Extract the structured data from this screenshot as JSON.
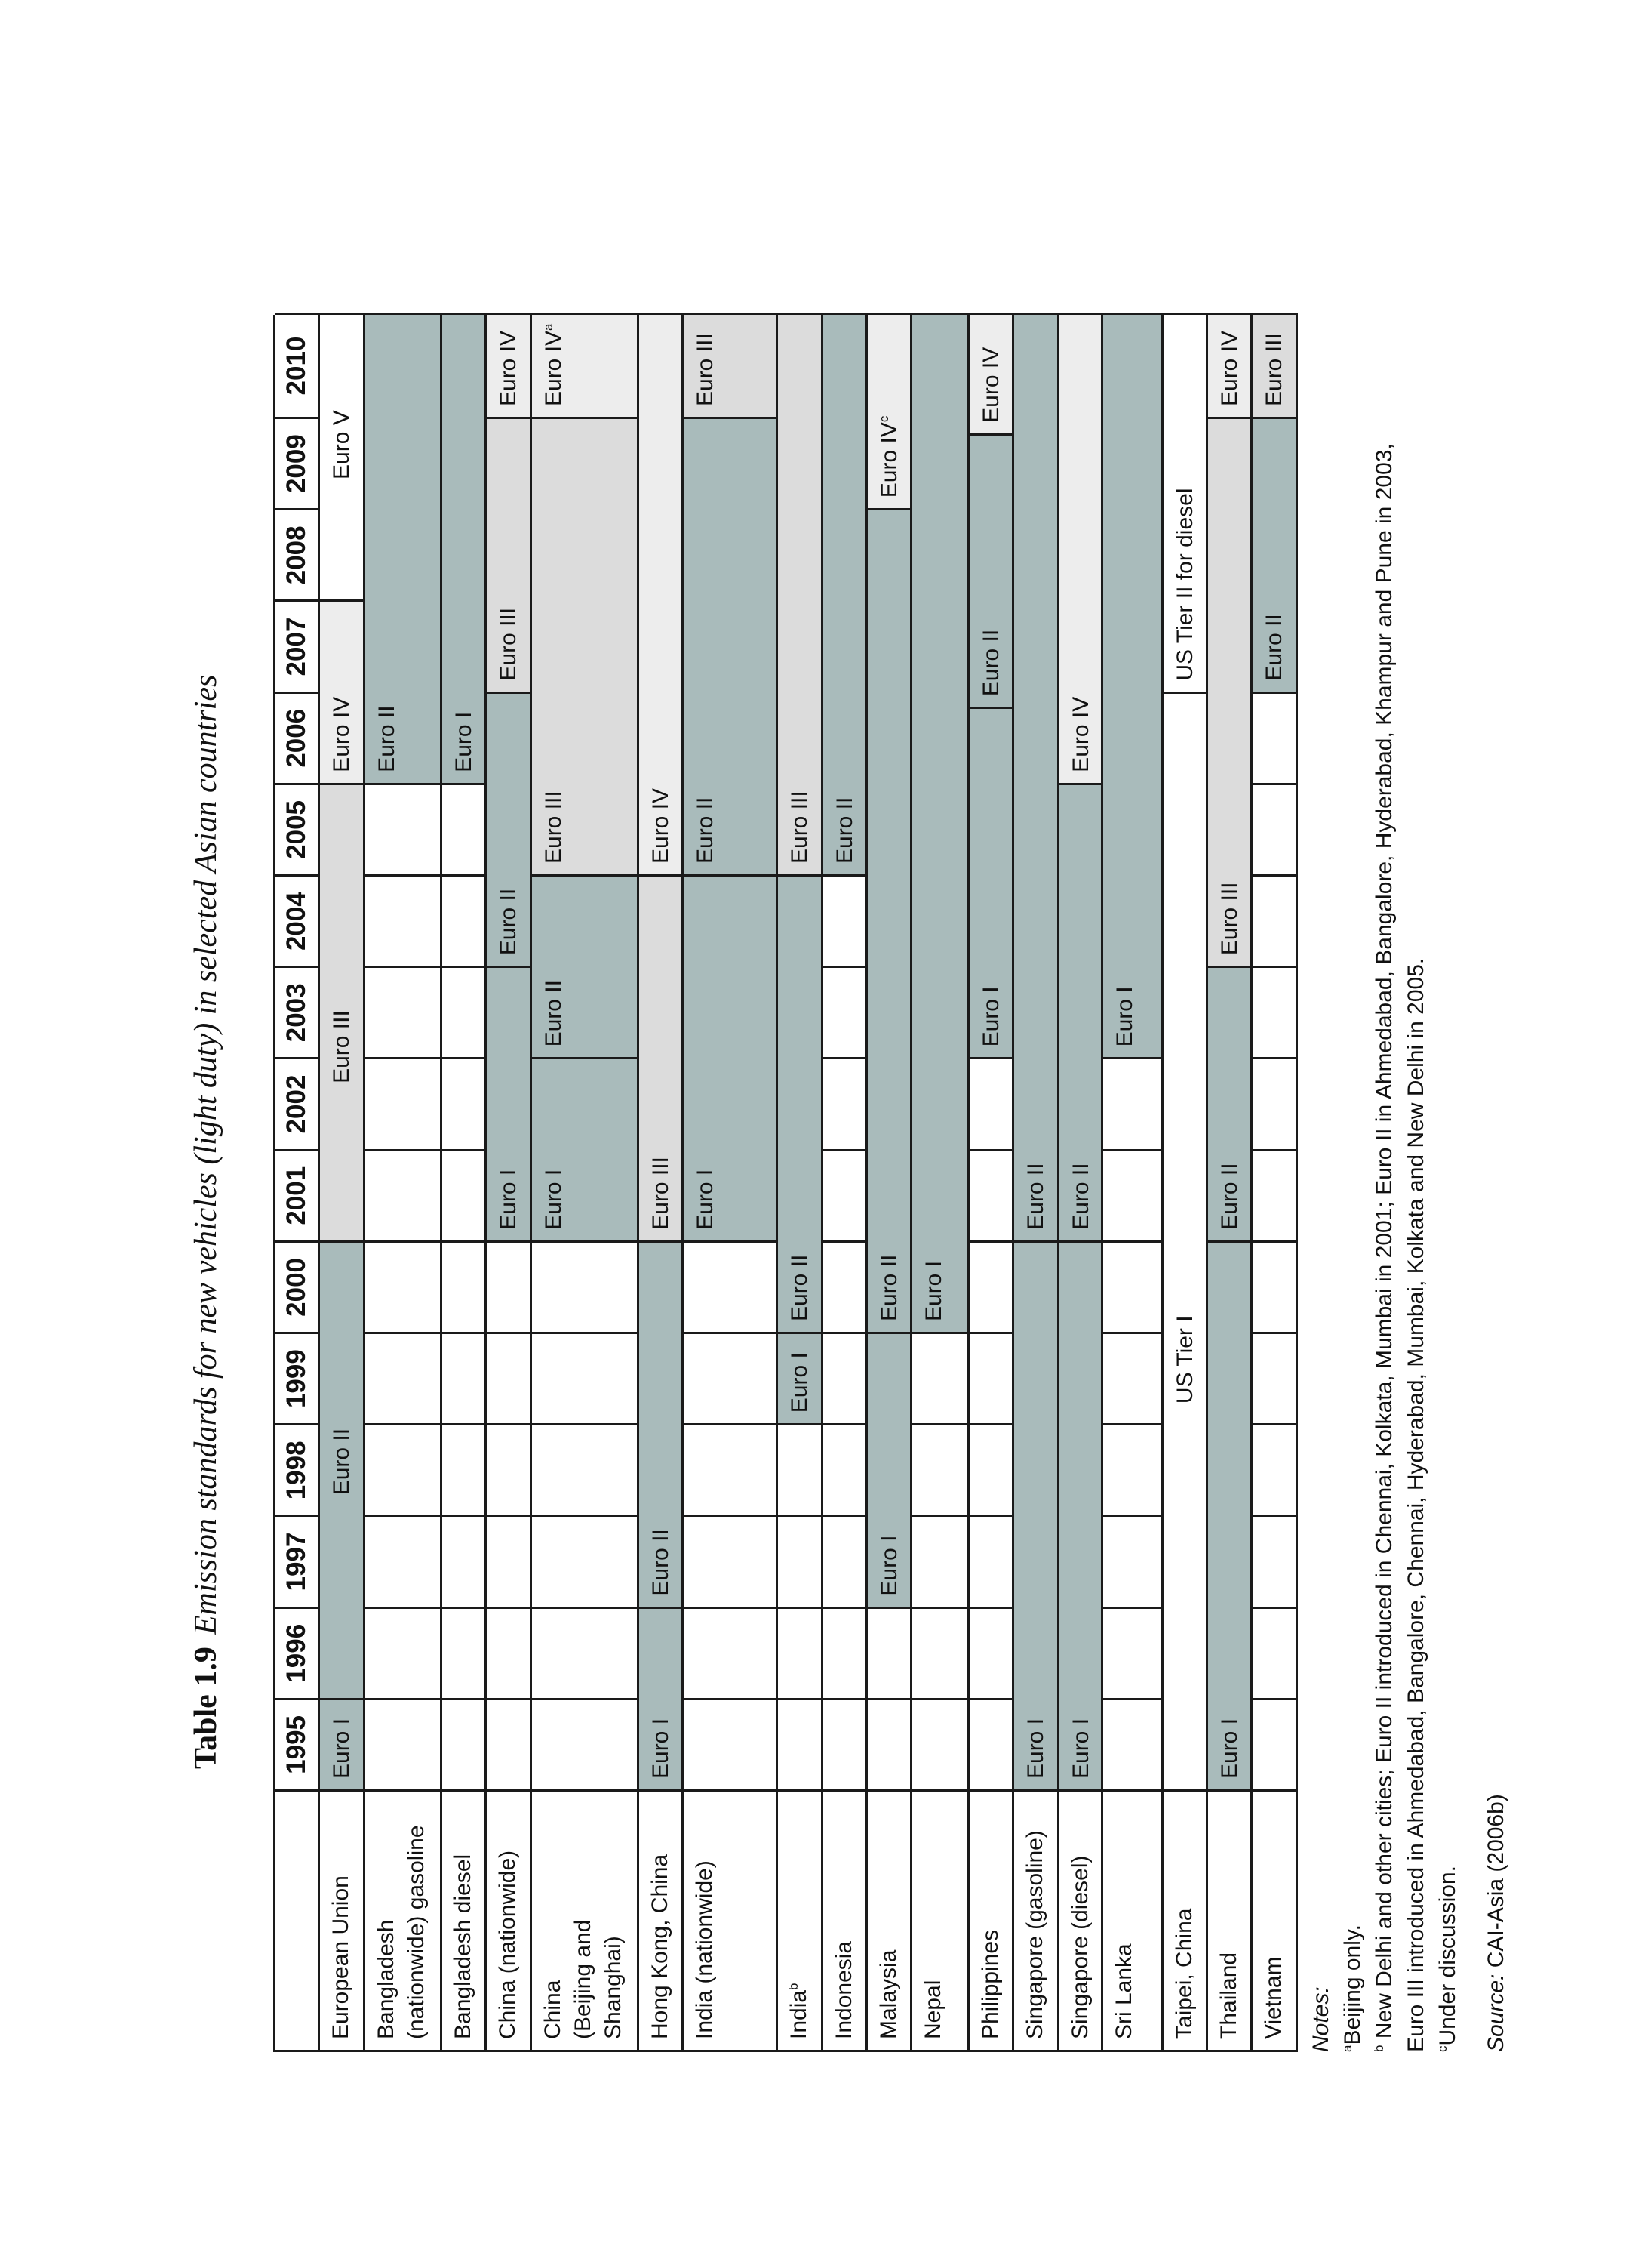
{
  "title": {
    "number": "Table 1.9",
    "text": "Emission standards for new vehicles (light duty) in selected Asian countries"
  },
  "years": [
    "1995",
    "1996",
    "1997",
    "1998",
    "1999",
    "2000",
    "2001",
    "2002",
    "2003",
    "2004",
    "2005",
    "2006",
    "2007",
    "2008",
    "2009",
    "2010"
  ],
  "colors": {
    "dark": "#a9bbbb",
    "medium": "#dcdcdc",
    "light": "#ededed",
    "white": "#ffffff",
    "border": "#1a1a1a"
  },
  "rows": [
    {
      "label": "European Union",
      "sup": "",
      "segments": [
        {
          "from": 1995,
          "to": 1996,
          "label": "Euro I",
          "shade": "dark"
        },
        {
          "from": 1996,
          "to": 2001,
          "label": "Euro II",
          "shade": "dark",
          "label_year": 1998.1
        },
        {
          "from": 2001,
          "to": 2006,
          "label": "Euro III",
          "shade": "medium",
          "label_year": 2002.6
        },
        {
          "from": 2006,
          "to": 2008,
          "label": "Euro IV",
          "shade": "light"
        },
        {
          "from": 2008,
          "to": 2011,
          "label": "Euro V",
          "shade": "white",
          "label_year": 2009.2
        }
      ]
    },
    {
      "label": "Bangladesh\n(nationwide) gasoline",
      "sup": "",
      "segments": [
        {
          "from": 1995,
          "to": 2006,
          "label": "",
          "shade": "white"
        },
        {
          "from": 2006,
          "to": 2011,
          "label": "Euro II",
          "shade": "dark"
        }
      ]
    },
    {
      "label": "Bangladesh diesel",
      "sup": "",
      "segments": [
        {
          "from": 1995,
          "to": 2006,
          "label": "",
          "shade": "white"
        },
        {
          "from": 2006,
          "to": 2011,
          "label": "Euro I",
          "shade": "dark"
        }
      ]
    },
    {
      "label": "China (nationwide)",
      "sup": "",
      "segments": [
        {
          "from": 1995,
          "to": 2001,
          "label": "",
          "shade": "white"
        },
        {
          "from": 2001,
          "to": 2004,
          "label": "Euro I",
          "shade": "dark"
        },
        {
          "from": 2004,
          "to": 2007,
          "label": "Euro II",
          "shade": "dark"
        },
        {
          "from": 2007,
          "to": 2010,
          "label": "Euro III",
          "shade": "medium"
        },
        {
          "from": 2010,
          "to": 2011,
          "label": "Euro IV",
          "shade": "light"
        }
      ]
    },
    {
      "label": "China\n(Beijing and\nShanghai)",
      "sup": "",
      "segments": [
        {
          "from": 1995,
          "to": 2001,
          "label": "",
          "shade": "white"
        },
        {
          "from": 2001,
          "to": 2003,
          "label": "Euro I",
          "shade": "dark"
        },
        {
          "from": 2003,
          "to": 2005,
          "label": "Euro II",
          "shade": "dark"
        },
        {
          "from": 2005,
          "to": 2010,
          "label": "Euro III",
          "shade": "medium"
        },
        {
          "from": 2010,
          "to": 2011,
          "label": "Euro IV",
          "sup": "a",
          "shade": "light"
        }
      ]
    },
    {
      "label": "Hong Kong, China",
      "sup": "",
      "segments": [
        {
          "from": 1995,
          "to": 1997,
          "label": "Euro I",
          "shade": "dark"
        },
        {
          "from": 1997,
          "to": 2001,
          "label": "Euro II",
          "shade": "dark"
        },
        {
          "from": 2001,
          "to": 2005,
          "label": "Euro III",
          "shade": "medium"
        },
        {
          "from": 2005,
          "to": 2011,
          "label": "Euro IV",
          "shade": "light"
        }
      ]
    },
    {
      "label": "India (nationwide)",
      "sup": "",
      "segments": [
        {
          "from": 1995,
          "to": 2001,
          "label": "",
          "shade": "white"
        },
        {
          "from": 2001,
          "to": 2005,
          "label": "Euro I",
          "shade": "dark"
        },
        {
          "from": 2005,
          "to": 2010,
          "label": "Euro II",
          "shade": "dark"
        },
        {
          "from": 2010,
          "to": 2011,
          "label": "Euro III",
          "shade": "medium"
        }
      ]
    },
    {
      "label": "India",
      "sup": "b",
      "segments": [
        {
          "from": 1995,
          "to": 1999,
          "label": "",
          "shade": "white"
        },
        {
          "from": 1999,
          "to": 2000,
          "label": "Euro I",
          "shade": "dark"
        },
        {
          "from": 2000,
          "to": 2005,
          "label": "Euro II",
          "shade": "dark"
        },
        {
          "from": 2005,
          "to": 2011,
          "label": "Euro III",
          "shade": "medium"
        }
      ]
    },
    {
      "label": "Indonesia",
      "sup": "",
      "segments": [
        {
          "from": 1995,
          "to": 2005,
          "label": "",
          "shade": "white"
        },
        {
          "from": 2005,
          "to": 2011,
          "label": "Euro II",
          "shade": "dark"
        }
      ]
    },
    {
      "label": "Malaysia",
      "sup": "",
      "segments": [
        {
          "from": 1995,
          "to": 1997,
          "label": "",
          "shade": "white"
        },
        {
          "from": 1997,
          "to": 2000,
          "label": "Euro I",
          "shade": "dark"
        },
        {
          "from": 2000,
          "to": 2009,
          "label": "Euro II",
          "shade": "dark"
        },
        {
          "from": 2009,
          "to": 2011,
          "label": "Euro IV",
          "sup": "c",
          "shade": "light"
        }
      ]
    },
    {
      "label": "Nepal",
      "sup": "",
      "segments": [
        {
          "from": 1995,
          "to": 2000,
          "label": "",
          "shade": "white"
        },
        {
          "from": 2000,
          "to": 2011,
          "label": "Euro I",
          "shade": "dark"
        }
      ]
    },
    {
      "label": "Philippines",
      "sup": "",
      "segments": [
        {
          "from": 1995,
          "to": 2003,
          "label": "",
          "shade": "white"
        },
        {
          "from": 2003,
          "to": 2006.83,
          "label": "Euro I",
          "shade": "dark"
        },
        {
          "from": 2006.83,
          "to": 2009.82,
          "label": "Euro II",
          "shade": "dark"
        },
        {
          "from": 2009.82,
          "to": 2011,
          "label": "Euro IV",
          "shade": "light"
        }
      ]
    },
    {
      "label": "Singapore (gasoline)",
      "sup": "",
      "segments": [
        {
          "from": 1995,
          "to": 2001,
          "label": "Euro I",
          "shade": "dark"
        },
        {
          "from": 2001,
          "to": 2011,
          "label": "Euro II",
          "shade": "dark"
        }
      ]
    },
    {
      "label": "Singapore (diesel)",
      "sup": "",
      "segments": [
        {
          "from": 1995,
          "to": 2001,
          "label": "Euro I",
          "shade": "dark"
        },
        {
          "from": 2001,
          "to": 2006,
          "label": "Euro II",
          "shade": "dark"
        },
        {
          "from": 2006,
          "to": 2011,
          "label": "Euro IV",
          "shade": "light"
        }
      ]
    },
    {
      "label": "Sri Lanka",
      "sup": "",
      "segments": [
        {
          "from": 1995,
          "to": 2003,
          "label": "",
          "shade": "white"
        },
        {
          "from": 2003,
          "to": 2011,
          "label": "Euro I",
          "shade": "dark"
        }
      ]
    },
    {
      "label": "Taipei, China",
      "sup": "",
      "segments": [
        {
          "from": 1995,
          "to": 2007,
          "label": "US Tier I",
          "shade": "white",
          "label_year": 1999.1
        },
        {
          "from": 2007,
          "to": 2011,
          "label": "US Tier II for diesel",
          "shade": "white"
        }
      ]
    },
    {
      "label": "Thailand",
      "sup": "",
      "segments": [
        {
          "from": 1995,
          "to": 2001,
          "label": "Euro I",
          "shade": "dark"
        },
        {
          "from": 2001,
          "to": 2004,
          "label": "Euro II",
          "shade": "dark"
        },
        {
          "from": 2004,
          "to": 2010,
          "label": "Euro III",
          "shade": "medium"
        },
        {
          "from": 2010,
          "to": 2011,
          "label": "Euro IV",
          "shade": "light"
        }
      ]
    },
    {
      "label": "Vietnam",
      "sup": "",
      "segments": [
        {
          "from": 1995,
          "to": 2007,
          "label": "",
          "shade": "white"
        },
        {
          "from": 2007,
          "to": 2010,
          "label": "Euro II",
          "shade": "dark"
        },
        {
          "from": 2010,
          "to": 2011,
          "label": "Euro III",
          "shade": "medium"
        }
      ]
    }
  ],
  "notes": {
    "heading": "Notes:",
    "a": {
      "marker": "a",
      "text": "Beijing only."
    },
    "b": {
      "marker": "b",
      "text": " New Delhi and other cities; Euro II introduced in Chennai, Kolkata, Mumbai in 2001; Euro II in Ahmedabad, Bangalore, Hyderabad, Khampur and Pune in 2003,",
      "text2": "Euro III introduced in Ahmedabad, Bangalore, Chennai, Hyderabad, Mumbai, Kolkata and New Delhi in 2005."
    },
    "c": {
      "marker": "c",
      "text": "Under discussion."
    },
    "source_label": "Source:",
    "source_text": " CAI-Asia (2006b)"
  }
}
